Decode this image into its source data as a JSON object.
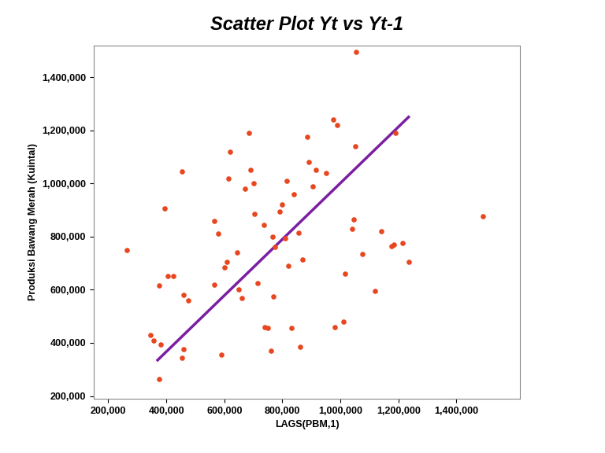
{
  "chart_data": {
    "type": "scatter",
    "title": "Scatter Plot Yt vs Yt-1",
    "x_label": "LAGS(PBM,1)",
    "y_label": "Produksi Bawang Merah (Kuintal)",
    "xlim": [
      150000,
      1620000
    ],
    "ylim": [
      190000,
      1520000
    ],
    "xticks": [
      {
        "value": 200000,
        "label": "200,000"
      },
      {
        "value": 400000,
        "label": "400,000"
      },
      {
        "value": 600000,
        "label": "600,000"
      },
      {
        "value": 800000,
        "label": "800,000"
      },
      {
        "value": 1000000,
        "label": "1,000,000"
      },
      {
        "value": 1200000,
        "label": "1,200,000"
      },
      {
        "value": 1400000,
        "label": "1,400,000"
      }
    ],
    "yticks": [
      {
        "value": 200000,
        "label": "200,000"
      },
      {
        "value": 400000,
        "label": "400,000"
      },
      {
        "value": 600000,
        "label": "600,000"
      },
      {
        "value": 800000,
        "label": "800,000"
      },
      {
        "value": 1000000,
        "label": "1,000,000"
      },
      {
        "value": 1200000,
        "label": "1,200,000"
      },
      {
        "value": 1400000,
        "label": "1,400,000"
      }
    ],
    "grid": false,
    "series": [
      {
        "type": "scatter",
        "color": "#e8461e",
        "marker": "o",
        "x": [
          265000,
          345000,
          355000,
          375000,
          375000,
          380000,
          395000,
          405000,
          425000,
          455000,
          455000,
          460000,
          460000,
          475000,
          565000,
          565000,
          580000,
          590000,
          600000,
          610000,
          620000,
          615000,
          645000,
          650000,
          660000,
          670000,
          685000,
          690000,
          700000,
          705000,
          715000,
          735000,
          740000,
          750000,
          760000,
          765000,
          770000,
          775000,
          790000,
          800000,
          810000,
          815000,
          820000,
          830000,
          840000,
          855000,
          860000,
          870000,
          885000,
          890000,
          905000,
          915000,
          950000,
          975000,
          980000,
          990000,
          1010000,
          1015000,
          1040000,
          1045000,
          1050000,
          1055000,
          1075000,
          1120000,
          1140000,
          1175000,
          1185000,
          1190000,
          1215000,
          1235000,
          1490000
        ],
        "values": [
          750000,
          430000,
          410000,
          265000,
          615000,
          395000,
          905000,
          650000,
          650000,
          1045000,
          345000,
          375000,
          580000,
          560000,
          860000,
          620000,
          810000,
          355000,
          685000,
          705000,
          1120000,
          1020000,
          740000,
          600000,
          570000,
          980000,
          1190000,
          1050000,
          1000000,
          885000,
          625000,
          845000,
          460000,
          455000,
          370000,
          800000,
          575000,
          760000,
          895000,
          920000,
          795000,
          1010000,
          690000,
          455000,
          960000,
          815000,
          385000,
          715000,
          1175000,
          1080000,
          990000,
          1050000,
          1040000,
          1240000,
          460000,
          1220000,
          480000,
          660000,
          830000,
          865000,
          1140000,
          1495000,
          735000,
          595000,
          820000,
          765000,
          770000,
          1190000,
          775000,
          705000,
          875000
        ]
      },
      {
        "type": "line",
        "color": "#7b1fa2",
        "line_style": "solid",
        "x": [
          370000,
          1235000
        ],
        "values": [
          335000,
          1250000
        ]
      }
    ]
  }
}
